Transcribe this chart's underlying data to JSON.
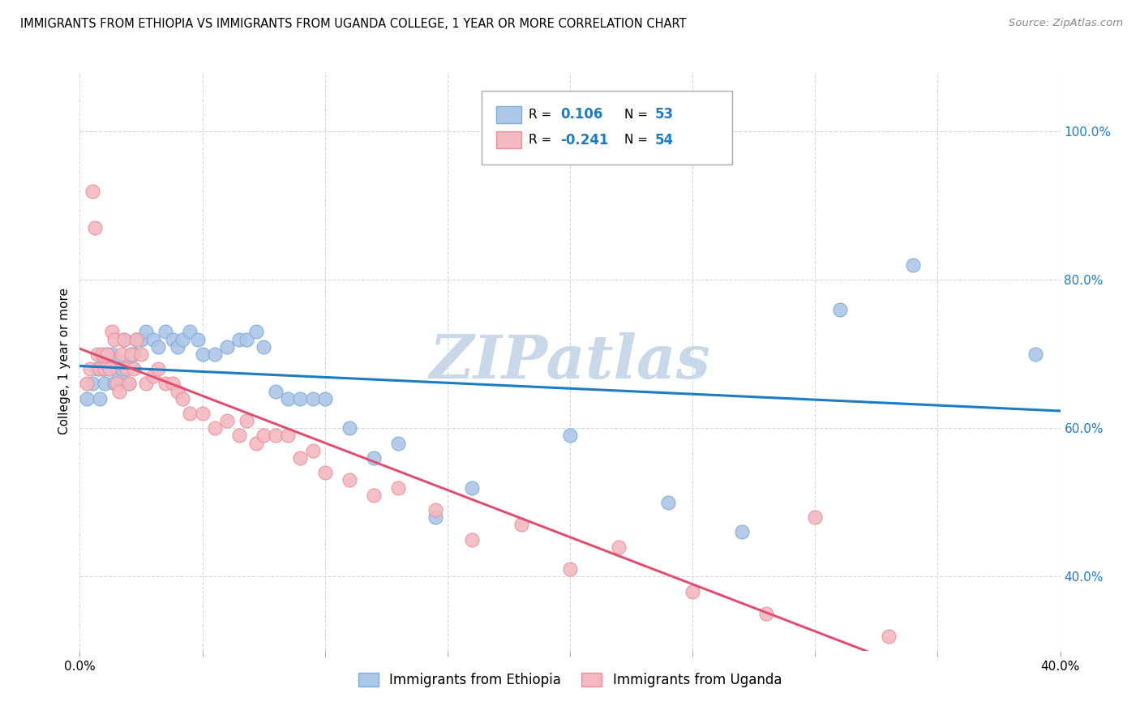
{
  "title": "IMMIGRANTS FROM ETHIOPIA VS IMMIGRANTS FROM UGANDA COLLEGE, 1 YEAR OR MORE CORRELATION CHART",
  "source": "Source: ZipAtlas.com",
  "ylabel": "College, 1 year or more",
  "xlim": [
    0.0,
    0.4
  ],
  "ylim": [
    0.3,
    1.08
  ],
  "x_ticks": [
    0.0,
    0.05,
    0.1,
    0.15,
    0.2,
    0.25,
    0.3,
    0.35,
    0.4
  ],
  "x_ticklabels_show": [
    "0.0%",
    "",
    "",
    "",
    "",
    "",
    "",
    "",
    "40.0%"
  ],
  "y_ticks": [
    0.4,
    0.6,
    0.8,
    1.0
  ],
  "y_ticklabels": [
    "40.0%",
    "60.0%",
    "80.0%",
    "100.0%"
  ],
  "legend_R_color": "#1a7dc4",
  "legend_N_color": "#1a7dc4",
  "watermark": "ZIPatlas",
  "watermark_color": "#c8d8e8",
  "ethiopia_x": [
    0.003,
    0.005,
    0.007,
    0.008,
    0.009,
    0.01,
    0.011,
    0.012,
    0.013,
    0.014,
    0.015,
    0.016,
    0.017,
    0.018,
    0.019,
    0.02,
    0.021,
    0.022,
    0.023,
    0.025,
    0.027,
    0.03,
    0.032,
    0.035,
    0.038,
    0.04,
    0.042,
    0.045,
    0.048,
    0.05,
    0.055,
    0.06,
    0.065,
    0.068,
    0.072,
    0.075,
    0.08,
    0.085,
    0.09,
    0.095,
    0.1,
    0.11,
    0.12,
    0.13,
    0.145,
    0.16,
    0.2,
    0.24,
    0.27,
    0.31,
    0.34,
    0.39,
    0.415
  ],
  "ethiopia_y": [
    0.64,
    0.66,
    0.68,
    0.64,
    0.68,
    0.66,
    0.7,
    0.68,
    0.7,
    0.66,
    0.69,
    0.67,
    0.68,
    0.72,
    0.69,
    0.66,
    0.7,
    0.7,
    0.72,
    0.72,
    0.73,
    0.72,
    0.71,
    0.73,
    0.72,
    0.71,
    0.72,
    0.73,
    0.72,
    0.7,
    0.7,
    0.71,
    0.72,
    0.72,
    0.73,
    0.71,
    0.65,
    0.64,
    0.64,
    0.64,
    0.64,
    0.6,
    0.56,
    0.58,
    0.48,
    0.52,
    0.59,
    0.5,
    0.46,
    0.76,
    0.82,
    0.7,
    0.68
  ],
  "uganda_x": [
    0.003,
    0.004,
    0.005,
    0.006,
    0.007,
    0.008,
    0.009,
    0.01,
    0.011,
    0.012,
    0.013,
    0.014,
    0.015,
    0.016,
    0.017,
    0.018,
    0.019,
    0.02,
    0.021,
    0.022,
    0.023,
    0.025,
    0.027,
    0.03,
    0.032,
    0.035,
    0.038,
    0.04,
    0.042,
    0.045,
    0.05,
    0.055,
    0.06,
    0.065,
    0.068,
    0.072,
    0.075,
    0.08,
    0.085,
    0.09,
    0.095,
    0.1,
    0.11,
    0.12,
    0.13,
    0.145,
    0.16,
    0.18,
    0.2,
    0.22,
    0.25,
    0.28,
    0.3,
    0.33
  ],
  "uganda_y": [
    0.66,
    0.68,
    0.92,
    0.87,
    0.7,
    0.68,
    0.7,
    0.68,
    0.7,
    0.68,
    0.73,
    0.72,
    0.66,
    0.65,
    0.7,
    0.72,
    0.68,
    0.66,
    0.7,
    0.68,
    0.72,
    0.7,
    0.66,
    0.67,
    0.68,
    0.66,
    0.66,
    0.65,
    0.64,
    0.62,
    0.62,
    0.6,
    0.61,
    0.59,
    0.61,
    0.58,
    0.59,
    0.59,
    0.59,
    0.56,
    0.57,
    0.54,
    0.53,
    0.51,
    0.52,
    0.49,
    0.45,
    0.47,
    0.41,
    0.44,
    0.38,
    0.35,
    0.48,
    0.32
  ],
  "ethiopia_color": "#aec6e8",
  "ethiopia_edge": "#7aadd4",
  "uganda_color": "#f4b8c1",
  "uganda_edge": "#e8909a",
  "trend_eth_color": "#1a7dc4",
  "trend_uga_color": "#e05070",
  "trend_uga_dash_color": "#d0b8c8",
  "grid_color": "#d0d8e0",
  "right_tick_color": "#1a7dc4"
}
